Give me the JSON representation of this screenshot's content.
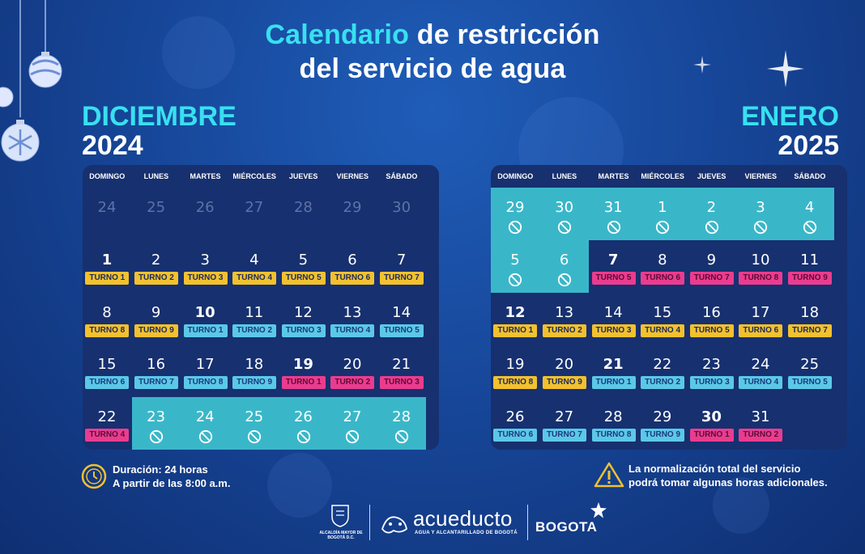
{
  "title": {
    "highlight": "Calendario",
    "rest_line1": " de restricción",
    "line2": "del servicio de agua"
  },
  "weekdays": [
    "DOMINGO",
    "LUNES",
    "MARTES",
    "MIÉRCOLES",
    "JUEVES",
    "VIERNES",
    "SÁBADO"
  ],
  "months": [
    {
      "name": "DICIEMBRE",
      "year": "2024",
      "weeks": [
        [
          {
            "d": "24",
            "muted": true
          },
          {
            "d": "25",
            "muted": true
          },
          {
            "d": "26",
            "muted": true
          },
          {
            "d": "27",
            "muted": true
          },
          {
            "d": "28",
            "muted": true
          },
          {
            "d": "29",
            "muted": true
          },
          {
            "d": "30",
            "muted": true
          }
        ],
        [
          {
            "d": "1",
            "bold": true,
            "t": "TURNO 1",
            "c": "yellow"
          },
          {
            "d": "2",
            "t": "TURNO 2",
            "c": "yellow"
          },
          {
            "d": "3",
            "t": "TURNO 3",
            "c": "yellow"
          },
          {
            "d": "4",
            "t": "TURNO 4",
            "c": "yellow"
          },
          {
            "d": "5",
            "t": "TURNO 5",
            "c": "yellow"
          },
          {
            "d": "6",
            "t": "TURNO 6",
            "c": "yellow"
          },
          {
            "d": "7",
            "t": "TURNO 7",
            "c": "yellow"
          }
        ],
        [
          {
            "d": "8",
            "t": "TURNO 8",
            "c": "yellow"
          },
          {
            "d": "9",
            "t": "TURNO 9",
            "c": "yellow"
          },
          {
            "d": "10",
            "bold": true,
            "t": "TURNO 1",
            "c": "blue"
          },
          {
            "d": "11",
            "t": "TURNO 2",
            "c": "blue"
          },
          {
            "d": "12",
            "t": "TURNO 3",
            "c": "blue"
          },
          {
            "d": "13",
            "t": "TURNO 4",
            "c": "blue"
          },
          {
            "d": "14",
            "t": "TURNO 5",
            "c": "blue"
          }
        ],
        [
          {
            "d": "15",
            "t": "TURNO 6",
            "c": "blue"
          },
          {
            "d": "16",
            "t": "TURNO 7",
            "c": "blue"
          },
          {
            "d": "17",
            "t": "TURNO 8",
            "c": "blue"
          },
          {
            "d": "18",
            "t": "TURNO 9",
            "c": "blue"
          },
          {
            "d": "19",
            "bold": true,
            "t": "TURNO 1",
            "c": "pink"
          },
          {
            "d": "20",
            "t": "TURNO 2",
            "c": "pink"
          },
          {
            "d": "21",
            "t": "TURNO 3",
            "c": "pink"
          }
        ],
        [
          {
            "d": "22",
            "t": "TURNO 4",
            "c": "pink"
          },
          {
            "d": "23",
            "no": true
          },
          {
            "d": "24",
            "no": true
          },
          {
            "d": "25",
            "no": true
          },
          {
            "d": "26",
            "no": true
          },
          {
            "d": "27",
            "no": true
          },
          {
            "d": "28",
            "no": true
          }
        ]
      ]
    },
    {
      "name": "ENERO",
      "year": "2025",
      "weeks": [
        [
          {
            "d": "29",
            "no": true
          },
          {
            "d": "30",
            "no": true
          },
          {
            "d": "31",
            "no": true
          },
          {
            "d": "1",
            "no": true
          },
          {
            "d": "2",
            "no": true
          },
          {
            "d": "3",
            "no": true
          },
          {
            "d": "4",
            "no": true
          }
        ],
        [
          {
            "d": "5",
            "no": true
          },
          {
            "d": "6",
            "no": true
          },
          {
            "d": "7",
            "bold": true,
            "t": "TURNO 5",
            "c": "pink"
          },
          {
            "d": "8",
            "t": "TURNO 6",
            "c": "pink"
          },
          {
            "d": "9",
            "t": "TURNO 7",
            "c": "pink"
          },
          {
            "d": "10",
            "t": "TURNO 8",
            "c": "pink"
          },
          {
            "d": "11",
            "t": "TURNO 9",
            "c": "pink"
          }
        ],
        [
          {
            "d": "12",
            "bold": true,
            "t": "TURNO 1",
            "c": "yellow"
          },
          {
            "d": "13",
            "t": "TURNO 2",
            "c": "yellow"
          },
          {
            "d": "14",
            "t": "TURNO 3",
            "c": "yellow"
          },
          {
            "d": "15",
            "t": "TURNO 4",
            "c": "yellow"
          },
          {
            "d": "16",
            "t": "TURNO 5",
            "c": "yellow"
          },
          {
            "d": "17",
            "t": "TURNO 6",
            "c": "yellow"
          },
          {
            "d": "18",
            "t": "TURNO 7",
            "c": "yellow"
          }
        ],
        [
          {
            "d": "19",
            "t": "TURNO 8",
            "c": "yellow"
          },
          {
            "d": "20",
            "t": "TURNO 9",
            "c": "yellow"
          },
          {
            "d": "21",
            "bold": true,
            "t": "TURNO 1",
            "c": "blue"
          },
          {
            "d": "22",
            "t": "TURNO 2",
            "c": "blue"
          },
          {
            "d": "23",
            "t": "TURNO 3",
            "c": "blue"
          },
          {
            "d": "24",
            "t": "TURNO 4",
            "c": "blue"
          },
          {
            "d": "25",
            "t": "TURNO 5",
            "c": "blue"
          }
        ],
        [
          {
            "d": "26",
            "t": "TURNO 6",
            "c": "blue"
          },
          {
            "d": "27",
            "t": "TURNO 7",
            "c": "blue"
          },
          {
            "d": "28",
            "t": "TURNO 8",
            "c": "blue"
          },
          {
            "d": "29",
            "t": "TURNO 9",
            "c": "blue"
          },
          {
            "d": "30",
            "bold": true,
            "t": "TURNO 1",
            "c": "pink"
          },
          {
            "d": "31",
            "t": "TURNO 2",
            "c": "pink"
          },
          {
            "d": ""
          }
        ]
      ]
    }
  ],
  "info_left": {
    "line1": "Duración: 24 horas",
    "line2": "A partir de las 8:00 a.m.",
    "icon": "clock-icon"
  },
  "info_right": {
    "line1": "La normalización total del servicio",
    "line2": "podrá tomar algunas horas adicionales.",
    "icon": "warning-icon"
  },
  "logos": {
    "alcaldia": "ALCALDÍA MAYOR DE BOGOTÁ D.C.",
    "acueducto": "acueducto",
    "acueducto_sub": "AGUA Y ALCANTARILLADO DE BOGOTÁ",
    "bogota": "BOGOTA"
  },
  "colors": {
    "cyan": "#38e0f0",
    "turno_yellow": "#f2c12e",
    "turno_blue": "#5bc8e8",
    "turno_pink": "#ea3c8f",
    "restricted": "#39b7c9"
  }
}
